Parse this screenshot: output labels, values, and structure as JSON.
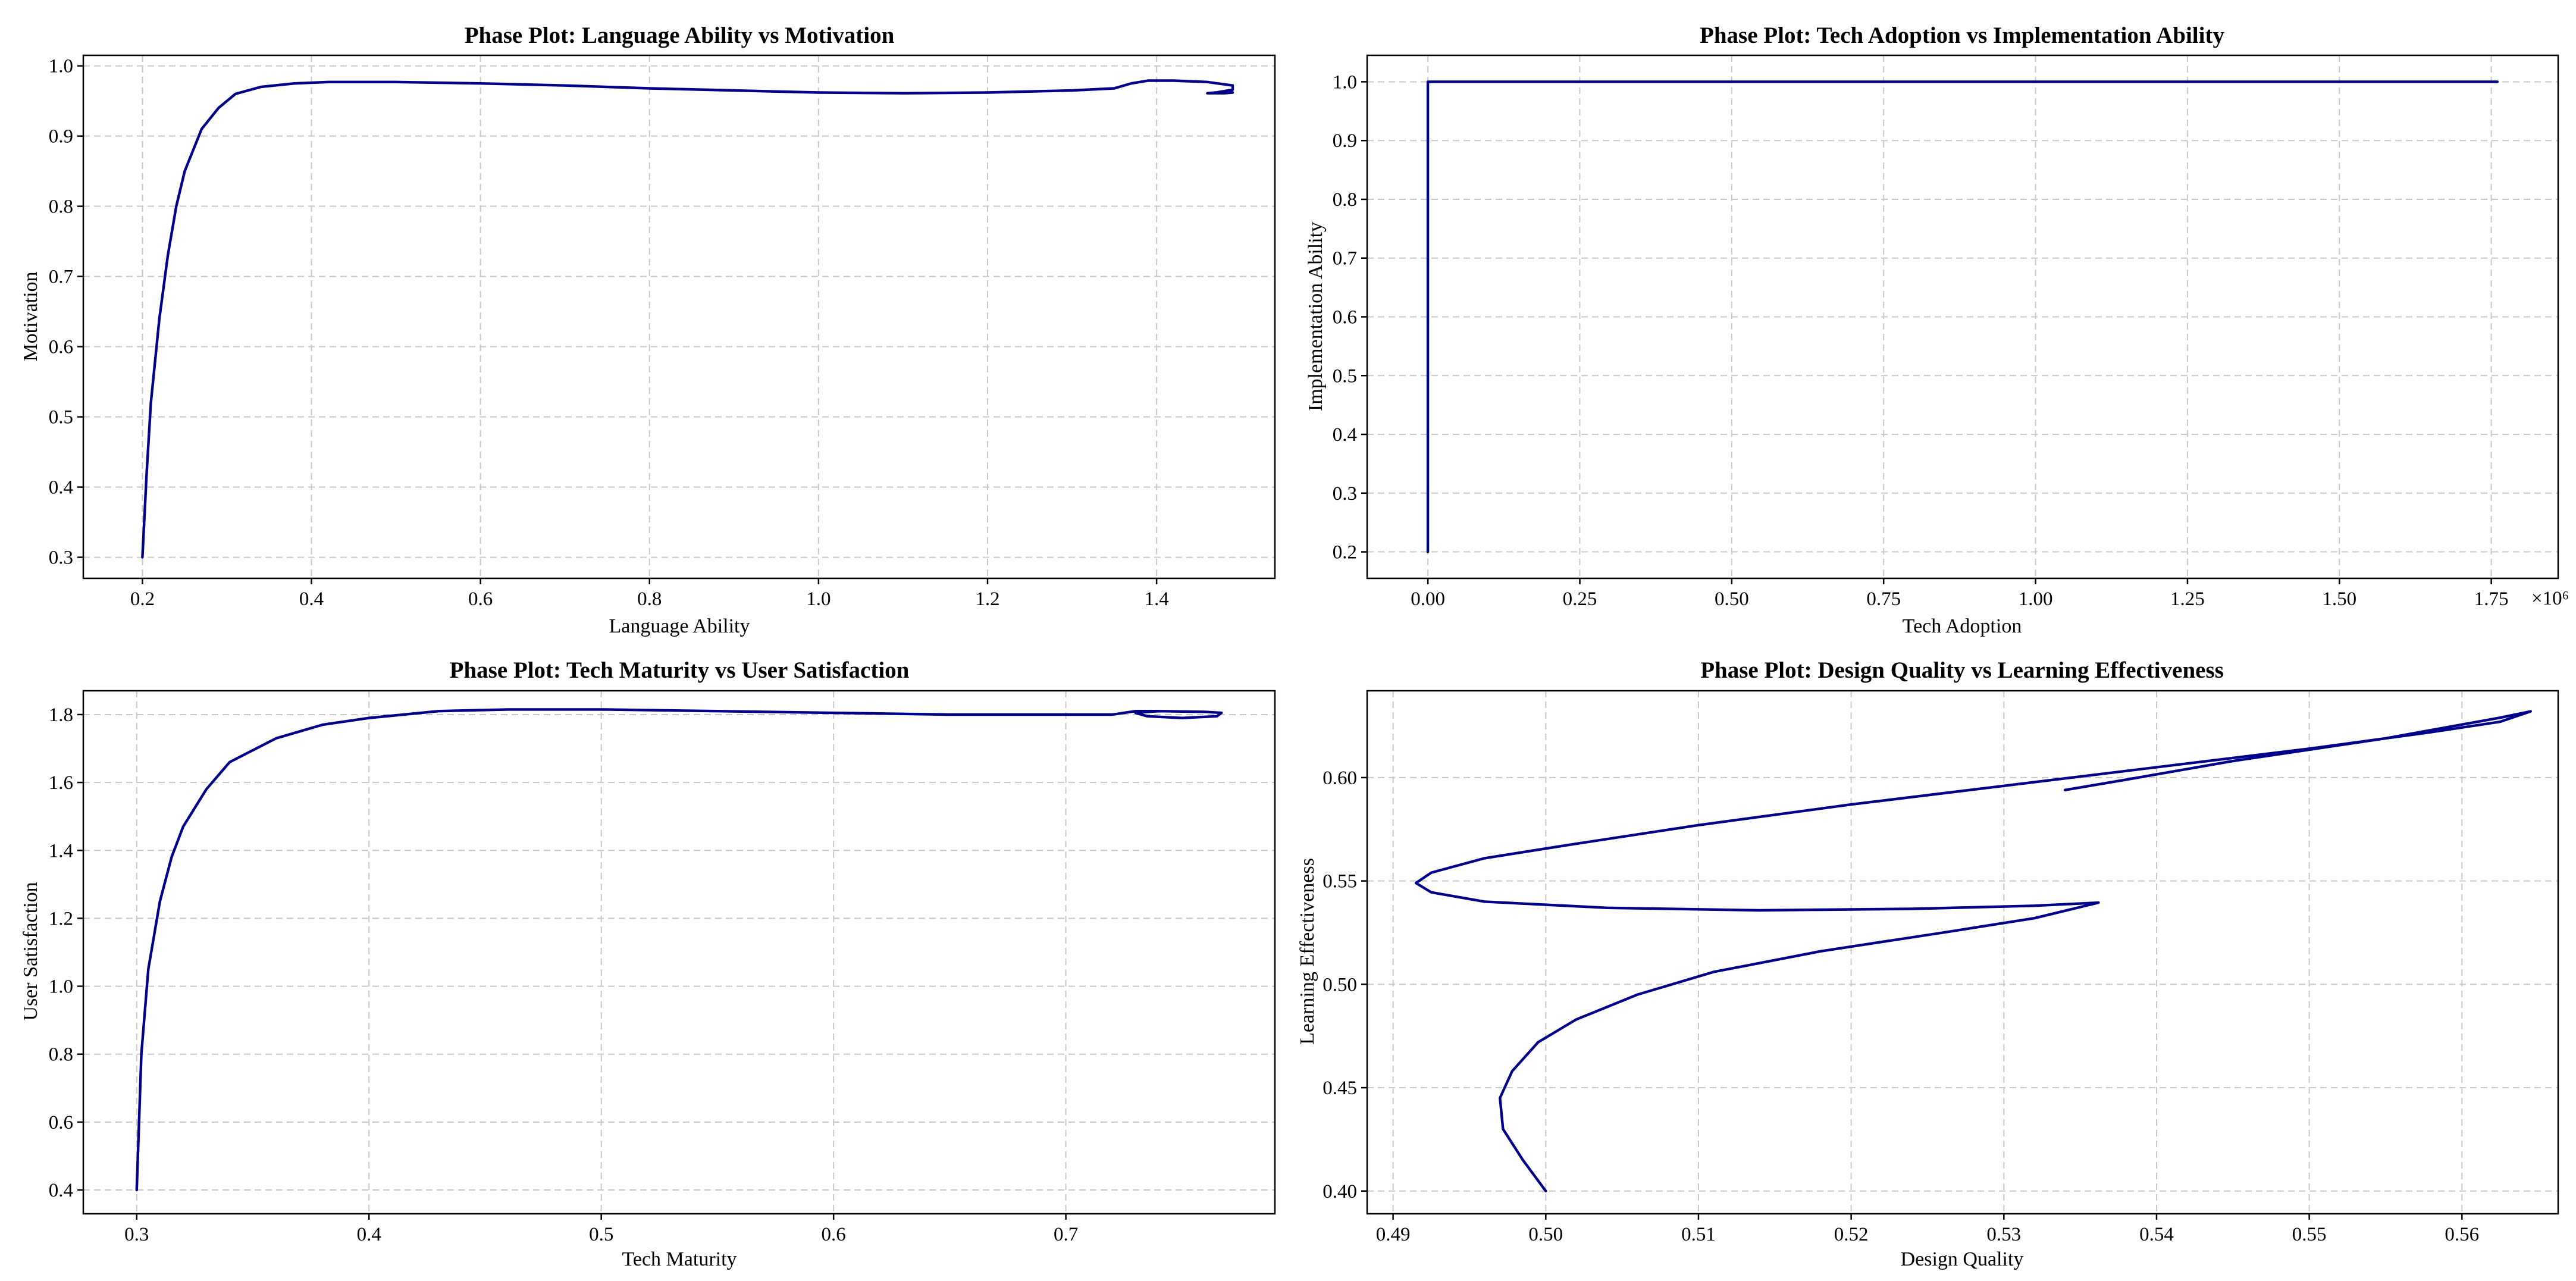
{
  "colors": {
    "line": "#00008b",
    "grid": "#c8c8c8",
    "frame": "#000000"
  },
  "chart_data": [
    {
      "type": "line",
      "title": "Phase Plot: Language Ability vs Motivation",
      "xlabel": "Language Ability",
      "ylabel": "Motivation",
      "xlim": [
        0.13,
        1.54
      ],
      "ylim": [
        0.27,
        1.015
      ],
      "xticks": [
        0.2,
        0.4,
        0.6,
        0.8,
        1.0,
        1.2,
        1.4
      ],
      "xtick_labels": [
        "0.2",
        "0.4",
        "0.6",
        "0.8",
        "1.0",
        "1.2",
        "1.4"
      ],
      "yticks": [
        0.3,
        0.4,
        0.5,
        0.6,
        0.7,
        0.8,
        0.9,
        1.0
      ],
      "ytick_labels": [
        "0.3",
        "0.4",
        "0.5",
        "0.6",
        "0.7",
        "0.8",
        "0.9",
        "1.0"
      ],
      "grid": true,
      "series": [
        {
          "x": [
            0.2,
            0.205,
            0.21,
            0.22,
            0.23,
            0.24,
            0.25,
            0.27,
            0.29,
            0.31,
            0.34,
            0.38,
            0.42,
            0.5,
            0.6,
            0.7,
            0.8,
            0.9,
            1.0,
            1.1,
            1.2,
            1.3,
            1.35,
            1.37,
            1.39,
            1.42,
            1.46,
            1.49,
            1.49,
            1.47,
            1.46,
            1.48,
            1.49
          ],
          "y": [
            0.3,
            0.42,
            0.52,
            0.64,
            0.73,
            0.8,
            0.85,
            0.91,
            0.94,
            0.96,
            0.97,
            0.975,
            0.977,
            0.977,
            0.975,
            0.972,
            0.968,
            0.965,
            0.962,
            0.961,
            0.962,
            0.965,
            0.968,
            0.975,
            0.979,
            0.979,
            0.977,
            0.972,
            0.966,
            0.962,
            0.961,
            0.961,
            0.962
          ]
        }
      ]
    },
    {
      "type": "line",
      "title": "Phase Plot: Tech Adoption vs Implementation Ability",
      "xlabel": "Tech Adoption",
      "ylabel": "Implementation Ability",
      "x_offset_label": "×10⁶",
      "xlim": [
        -0.1,
        1.86
      ],
      "ylim": [
        0.155,
        1.045
      ],
      "xticks": [
        0.0,
        0.25,
        0.5,
        0.75,
        1.0,
        1.25,
        1.5,
        1.75
      ],
      "xtick_labels": [
        "0.00",
        "0.25",
        "0.50",
        "0.75",
        "1.00",
        "1.25",
        "1.50",
        "1.75"
      ],
      "yticks": [
        0.2,
        0.3,
        0.4,
        0.5,
        0.6,
        0.7,
        0.8,
        0.9,
        1.0
      ],
      "ytick_labels": [
        "0.2",
        "0.3",
        "0.4",
        "0.5",
        "0.6",
        "0.7",
        "0.8",
        "0.9",
        "1.0"
      ],
      "grid": true,
      "series": [
        {
          "x": [
            0.0,
            0.0,
            0.0,
            0.5,
            1.0,
            1.5,
            1.76
          ],
          "y": [
            0.2,
            0.6,
            1.0,
            1.0,
            1.0,
            1.0,
            1.0
          ]
        }
      ]
    },
    {
      "type": "line",
      "title": "Phase Plot: Tech Maturity vs User Satisfaction",
      "xlabel": "Tech Maturity",
      "ylabel": "User Satisfaction",
      "xlim": [
        0.277,
        0.79
      ],
      "ylim": [
        0.33,
        1.87
      ],
      "xticks": [
        0.3,
        0.4,
        0.5,
        0.6,
        0.7
      ],
      "xtick_labels": [
        "0.3",
        "0.4",
        "0.5",
        "0.6",
        "0.7"
      ],
      "yticks": [
        0.4,
        0.6,
        0.8,
        1.0,
        1.2,
        1.4,
        1.6,
        1.8
      ],
      "ytick_labels": [
        "0.4",
        "0.6",
        "0.8",
        "1.0",
        "1.2",
        "1.4",
        "1.6",
        "1.8"
      ],
      "grid": true,
      "series": [
        {
          "x": [
            0.3,
            0.302,
            0.305,
            0.31,
            0.315,
            0.32,
            0.33,
            0.34,
            0.36,
            0.38,
            0.4,
            0.43,
            0.46,
            0.5,
            0.55,
            0.6,
            0.65,
            0.7,
            0.72,
            0.73,
            0.74,
            0.76,
            0.767,
            0.765,
            0.75,
            0.735,
            0.73,
            0.74
          ],
          "y": [
            0.4,
            0.8,
            1.05,
            1.25,
            1.38,
            1.47,
            1.58,
            1.66,
            1.73,
            1.77,
            1.79,
            1.81,
            1.815,
            1.815,
            1.81,
            1.805,
            1.8,
            1.8,
            1.8,
            1.81,
            1.81,
            1.808,
            1.805,
            1.795,
            1.79,
            1.795,
            1.805,
            1.81
          ]
        }
      ]
    },
    {
      "type": "line",
      "title": "Phase Plot: Design Quality vs Learning Effectiveness",
      "xlabel": "Design Quality",
      "ylabel": "Learning Effectiveness",
      "xlim": [
        0.4883,
        0.5663
      ],
      "ylim": [
        0.389,
        0.642
      ],
      "xticks": [
        0.49,
        0.5,
        0.51,
        0.52,
        0.53,
        0.54,
        0.55,
        0.56
      ],
      "xtick_labels": [
        "0.49",
        "0.50",
        "0.51",
        "0.52",
        "0.53",
        "0.54",
        "0.55",
        "0.56"
      ],
      "yticks": [
        0.4,
        0.45,
        0.5,
        0.55,
        0.6
      ],
      "ytick_labels": [
        "0.40",
        "0.45",
        "0.50",
        "0.55",
        "0.60"
      ],
      "grid": true,
      "series": [
        {
          "x": [
            0.5,
            0.4985,
            0.4972,
            0.497,
            0.4978,
            0.4995,
            0.502,
            0.506,
            0.511,
            0.518,
            0.526,
            0.532,
            0.5362,
            0.532,
            0.524,
            0.514,
            0.504,
            0.496,
            0.4925,
            0.4915,
            0.4925,
            0.496,
            0.502,
            0.51,
            0.52,
            0.53,
            0.54,
            0.55,
            0.558,
            0.5625,
            0.5645,
            0.5625,
            0.555,
            0.545,
            0.538,
            0.534
          ],
          "y": [
            0.4,
            0.415,
            0.43,
            0.445,
            0.458,
            0.472,
            0.483,
            0.495,
            0.506,
            0.516,
            0.525,
            0.532,
            0.5395,
            0.538,
            0.5365,
            0.5358,
            0.537,
            0.54,
            0.5445,
            0.549,
            0.554,
            0.561,
            0.568,
            0.577,
            0.587,
            0.596,
            0.605,
            0.614,
            0.622,
            0.627,
            0.632,
            0.629,
            0.619,
            0.608,
            0.599,
            0.594
          ]
        }
      ]
    }
  ]
}
